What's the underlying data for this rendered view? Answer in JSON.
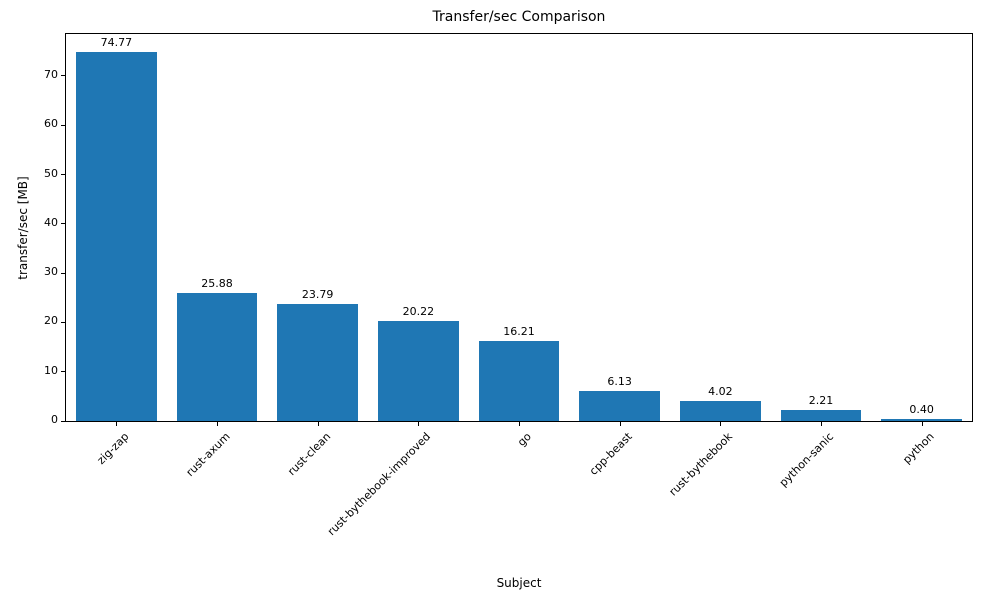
{
  "chart_data": {
    "type": "bar",
    "title": "Transfer/sec Comparison",
    "xlabel": "Subject",
    "ylabel": "transfer/sec [MB]",
    "categories": [
      "zig-zap",
      "rust-axum",
      "rust-clean",
      "rust-bythebook-improved",
      "go",
      "cpp-beast",
      "rust-bythebook",
      "python-sanic",
      "python"
    ],
    "values": [
      74.77,
      25.88,
      23.79,
      20.22,
      16.21,
      6.13,
      4.02,
      2.21,
      0.4
    ],
    "value_labels": [
      "74.77",
      "25.88",
      "23.79",
      "20.22",
      "16.21",
      "6.13",
      "4.02",
      "2.21",
      "0.40"
    ],
    "ylim": [
      0,
      78.5
    ],
    "yticks": [
      0,
      10,
      20,
      30,
      40,
      50,
      60,
      70
    ],
    "bar_color": "#1f77b4",
    "grid": false,
    "legend": "none",
    "bar_width_fraction": 0.8,
    "xtick_rotation_deg": 45
  }
}
